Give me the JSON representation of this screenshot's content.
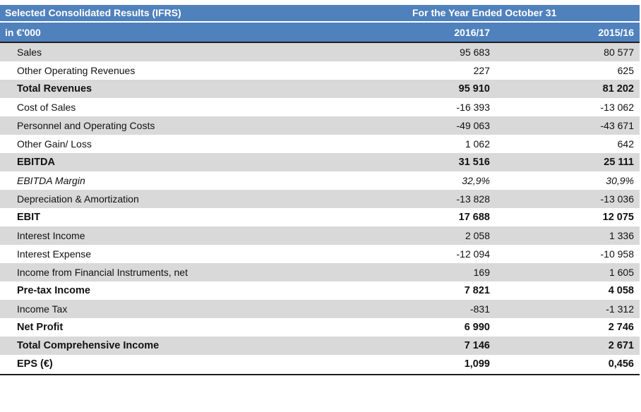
{
  "header": {
    "title": "Selected Consolidated Results (IFRS)",
    "period_label": "For the Year Ended October 31",
    "unit": "in €'000",
    "col1": "2016/17",
    "col2": "2015/16"
  },
  "rows": [
    {
      "label": "Sales",
      "v1": "95 683",
      "v2": "80 577",
      "style": "normal",
      "shade": true
    },
    {
      "label": "Other Operating Revenues",
      "v1": "227",
      "v2": "625",
      "style": "normal",
      "shade": false
    },
    {
      "label": "Total Revenues",
      "v1": "95 910",
      "v2": "81 202",
      "style": "bold",
      "shade": true
    },
    {
      "label": "Cost of Sales",
      "v1": "-16 393",
      "v2": "-13 062",
      "style": "normal",
      "shade": false
    },
    {
      "label": "Personnel and Operating Costs",
      "v1": "-49 063",
      "v2": "-43 671",
      "style": "normal",
      "shade": true
    },
    {
      "label": "Other Gain/ Loss",
      "v1": "1 062",
      "v2": "642",
      "style": "normal",
      "shade": false
    },
    {
      "label": "EBITDA",
      "v1": "31 516",
      "v2": "25 111",
      "style": "bold",
      "shade": true
    },
    {
      "label": "EBITDA Margin",
      "v1": "32,9%",
      "v2": "30,9%",
      "style": "italic",
      "shade": false
    },
    {
      "label": "Depreciation & Amortization",
      "v1": "-13 828",
      "v2": "-13 036",
      "style": "normal",
      "shade": true
    },
    {
      "label": "EBIT",
      "v1": "17 688",
      "v2": "12 075",
      "style": "bold",
      "shade": false
    },
    {
      "label": "Interest Income",
      "v1": "2 058",
      "v2": "1 336",
      "style": "normal",
      "shade": true
    },
    {
      "label": "Interest Expense",
      "v1": "-12 094",
      "v2": "-10 958",
      "style": "normal",
      "shade": false
    },
    {
      "label": "Income from Financial Instruments, net",
      "v1": "169",
      "v2": "1 605",
      "style": "normal",
      "shade": true
    },
    {
      "label": "Pre-tax Income",
      "v1": "7 821",
      "v2": "4 058",
      "style": "bold",
      "shade": false
    },
    {
      "label": "Income Tax",
      "v1": "-831",
      "v2": "-1 312",
      "style": "normal",
      "shade": true
    },
    {
      "label": "Net Profit",
      "v1": "6 990",
      "v2": "2 746",
      "style": "bold",
      "shade": false
    },
    {
      "label": "Total Comprehensive Income",
      "v1": "7 146",
      "v2": "2 671",
      "style": "bold",
      "shade": true
    },
    {
      "label": "EPS (€)",
      "v1": "1,099",
      "v2": "0,456",
      "style": "bold",
      "shade": false
    }
  ],
  "colors": {
    "header_bg": "#4f81bd",
    "shade": "#d9d9d9"
  }
}
